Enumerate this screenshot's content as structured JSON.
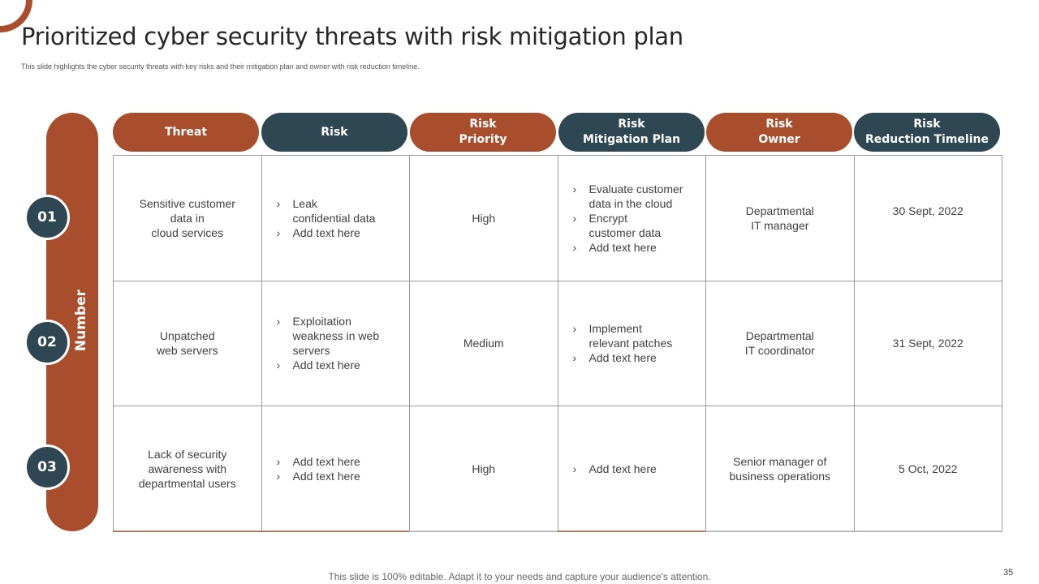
{
  "title": "Prioritized cyber security threats with risk mitigation plan",
  "subtitle": "This slide highlights the cyber security threats with key risks and their mitigation plan and owner with risk reduction timeline.",
  "side_label": "Number",
  "numbers": [
    "01",
    "02",
    "03"
  ],
  "headers": [
    {
      "label": "Threat",
      "color": "#a94e2c"
    },
    {
      "label": "Risk",
      "color": "#2e4752"
    },
    {
      "label": "Risk\nPriority",
      "color": "#a94e2c"
    },
    {
      "label": "Risk\nMitigation Plan",
      "color": "#2e4752"
    },
    {
      "label": "Risk\nOwner",
      "color": "#a94e2c"
    },
    {
      "label": "Risk\nReduction Timeline",
      "color": "#2e4752"
    }
  ],
  "rows": [
    {
      "threat": "Sensitive customer\ndata in\ncloud services",
      "risk": [
        "Leak\nconfidential data",
        "Add text here"
      ],
      "priority": "High",
      "mitigation": [
        "Evaluate customer\ndata in the cloud",
        "Encrypt\ncustomer data",
        "Add text here"
      ],
      "owner": "Departmental\nIT manager",
      "timeline": "30 Sept, 2022"
    },
    {
      "threat": "Unpatched\nweb servers",
      "risk": [
        "Exploitation\nweakness in web\nservers",
        "Add text here"
      ],
      "priority": "Medium",
      "mitigation": [
        "Implement\nrelevant patches",
        "Add text here"
      ],
      "owner": "Departmental\nIT coordinator",
      "timeline": "31 Sept, 2022"
    },
    {
      "threat": "Lack of security\nawareness with\ndepartmental users",
      "risk": [
        "Add text here",
        "Add text here"
      ],
      "priority": "High",
      "mitigation": [
        "Add text here"
      ],
      "owner": "Senior manager of\nbusiness operations",
      "timeline": "5 Oct, 2022"
    }
  ],
  "footer": "This slide is 100% editable. Adapt it to your needs and capture your audience's attention.",
  "page_number": "35",
  "colors": {
    "accent": "#a94e2c",
    "dark": "#2e4752"
  }
}
